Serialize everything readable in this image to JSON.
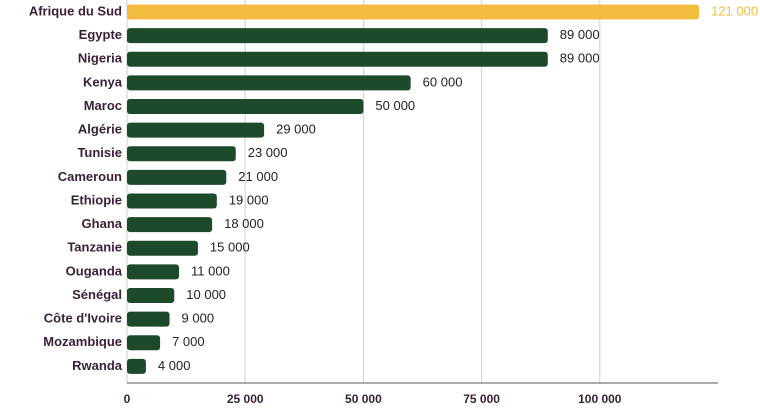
{
  "chart_data": {
    "type": "barh",
    "categories": [
      "Afrique du Sud",
      "Egypte",
      "Nigeria",
      "Kenya",
      "Maroc",
      "Algérie",
      "Tunisie",
      "Cameroun",
      "Ethiopie",
      "Ghana",
      "Tanzanie",
      "Ouganda",
      "Sénégal",
      "Côte d'Ivoire",
      "Mozambique",
      "Rwanda"
    ],
    "values": [
      121000,
      89000,
      89000,
      60000,
      50000,
      29000,
      23000,
      21000,
      19000,
      18000,
      15000,
      11000,
      10000,
      9000,
      7000,
      4000
    ],
    "value_labels": [
      "121 000",
      "89 000",
      "89 000",
      "60 000",
      "50 000",
      "29 000",
      "23 000",
      "21 000",
      "19 000",
      "18 000",
      "15 000",
      "11 000",
      "10 000",
      "9 000",
      "7 000",
      "4 000"
    ],
    "colors": [
      "#f2bc40",
      "#1e4a2c",
      "#1e4a2c",
      "#1e4a2c",
      "#1e4a2c",
      "#1e4a2c",
      "#1e4a2c",
      "#1e4a2c",
      "#1e4a2c",
      "#1e4a2c",
      "#1e4a2c",
      "#1e4a2c",
      "#1e4a2c",
      "#1e4a2c",
      "#1e4a2c",
      "#1e4a2c"
    ],
    "xlim": [
      0,
      125000
    ],
    "xticks": [
      0,
      {
        "value": 25000,
        "label": "25 000"
      },
      {
        "value": 50000,
        "label": "50 000"
      },
      {
        "value": 75000,
        "label": "75 000"
      },
      {
        "value": 100000,
        "label": "100 000"
      }
    ],
    "grid": true
  }
}
